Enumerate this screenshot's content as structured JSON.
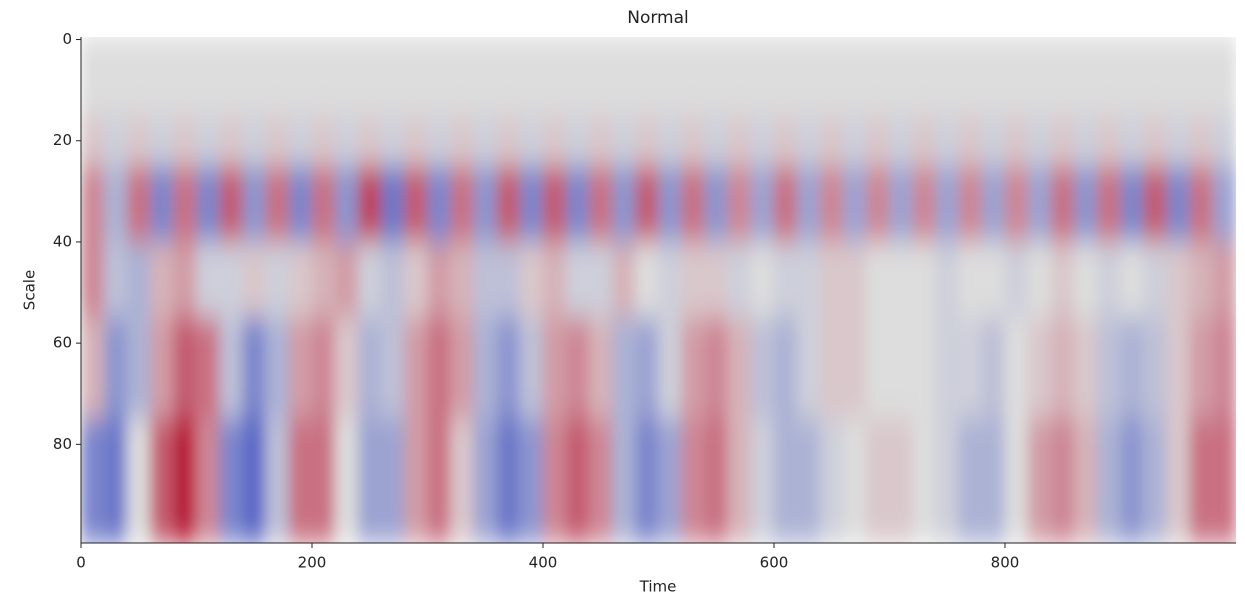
{
  "chart_data": {
    "type": "heatmap",
    "title": "Normal",
    "x_label": "Time",
    "y_label": "Scale",
    "xlim": [
      0,
      1000
    ],
    "ylim": [
      99.5,
      -0.5
    ],
    "xticks": [
      0,
      200,
      400,
      600,
      800
    ],
    "yticks": [
      0,
      20,
      40,
      60,
      80
    ],
    "colormap": [
      "#3b4cc0",
      "#dddddd",
      "#b40426"
    ],
    "vmin": -1,
    "vmax": 1,
    "x_edges": [
      0,
      20,
      40,
      60,
      80,
      100,
      120,
      140,
      160,
      180,
      200,
      220,
      240,
      260,
      280,
      300,
      320,
      340,
      360,
      380,
      400,
      420,
      440,
      460,
      480,
      500,
      520,
      540,
      560,
      580,
      600,
      620,
      640,
      660,
      680,
      700,
      720,
      740,
      760,
      780,
      800,
      820,
      840,
      860,
      880,
      900,
      920,
      940,
      960,
      980,
      1000
    ],
    "y_edges": [
      -0.5,
      15,
      25,
      40,
      55,
      75,
      99.5
    ],
    "z": [
      [
        0,
        0,
        0,
        0,
        0,
        0,
        0,
        0,
        0,
        0,
        0,
        0,
        0,
        0,
        0,
        0,
        0,
        0,
        0,
        0,
        0,
        0,
        0,
        0,
        0,
        0,
        0,
        0,
        0,
        0,
        0,
        0,
        0,
        0,
        0,
        0,
        0,
        0,
        0,
        0,
        0,
        0,
        0,
        0,
        0,
        0,
        0,
        0,
        0,
        0
      ],
      [
        0.1,
        -0.1,
        0.1,
        -0.1,
        0.1,
        -0.1,
        0.1,
        -0.1,
        0.1,
        -0.1,
        0.1,
        -0.1,
        0.1,
        -0.1,
        0.1,
        -0.1,
        0.1,
        -0.1,
        0.1,
        -0.1,
        0.1,
        -0.1,
        0.1,
        -0.1,
        0.1,
        -0.1,
        0.1,
        -0.1,
        0.1,
        -0.1,
        0.1,
        -0.1,
        0.1,
        -0.1,
        0.1,
        -0.1,
        0.1,
        -0.1,
        0.1,
        -0.1,
        0.1,
        -0.1,
        0.1,
        -0.1,
        0.1,
        -0.1,
        0.1,
        -0.1,
        0.1,
        -0.1
      ],
      [
        0.4,
        -0.3,
        0.5,
        -0.6,
        0.5,
        -0.6,
        0.6,
        -0.5,
        0.5,
        -0.6,
        0.5,
        -0.5,
        0.7,
        -0.7,
        0.6,
        -0.6,
        0.5,
        -0.5,
        0.6,
        -0.6,
        0.6,
        -0.6,
        0.5,
        -0.5,
        0.6,
        -0.5,
        0.5,
        -0.5,
        0.4,
        -0.4,
        0.5,
        -0.4,
        0.4,
        -0.4,
        0.4,
        -0.4,
        0.4,
        -0.4,
        0.4,
        -0.4,
        0.4,
        -0.4,
        0.5,
        -0.5,
        0.5,
        -0.6,
        0.6,
        -0.6,
        0.5,
        -0.4
      ],
      [
        0.4,
        -0.2,
        -0.3,
        0.2,
        0.3,
        -0.1,
        -0.1,
        0.1,
        -0.1,
        0.1,
        0.2,
        0.3,
        -0.1,
        -0.2,
        0.1,
        0.3,
        0.2,
        -0.2,
        -0.2,
        0.1,
        0.2,
        -0.1,
        -0.1,
        0.2,
        0,
        -0.1,
        0.1,
        0.1,
        -0.1,
        0,
        -0.1,
        -0.1,
        0.1,
        0.1,
        0,
        0,
        0,
        -0.1,
        0,
        0,
        -0.1,
        0,
        0.1,
        0,
        -0.1,
        0,
        -0.1,
        0.1,
        0.2,
        0.3
      ],
      [
        0.2,
        -0.5,
        -0.3,
        0.3,
        0.6,
        0.5,
        -0.2,
        -0.6,
        -0.3,
        0.3,
        0.4,
        0.1,
        -0.3,
        -0.2,
        0.3,
        0.5,
        0.3,
        -0.3,
        -0.5,
        -0.2,
        0.3,
        0.4,
        0.2,
        -0.3,
        -0.4,
        -0.1,
        0.3,
        0.4,
        0.2,
        -0.2,
        -0.3,
        -0.1,
        0.1,
        0.1,
        0,
        0,
        0,
        -0.1,
        -0.1,
        -0.2,
        0,
        0.1,
        0.2,
        0.1,
        -0.2,
        -0.3,
        -0.2,
        0.1,
        0.3,
        0.4
      ],
      [
        -0.6,
        -0.7,
        0,
        0.6,
        0.9,
        0.4,
        -0.6,
        -0.8,
        -0.2,
        0.5,
        0.5,
        0,
        -0.4,
        -0.4,
        0.3,
        0.5,
        0.1,
        -0.4,
        -0.7,
        -0.5,
        0.4,
        0.6,
        0.4,
        -0.3,
        -0.6,
        -0.4,
        0.4,
        0.5,
        0.2,
        -0.1,
        -0.3,
        -0.3,
        -0.1,
        0,
        0.1,
        0.1,
        0,
        -0.1,
        -0.3,
        -0.3,
        0,
        0.3,
        0.4,
        0.2,
        -0.3,
        -0.5,
        -0.3,
        0.1,
        0.5,
        0.5
      ]
    ]
  }
}
